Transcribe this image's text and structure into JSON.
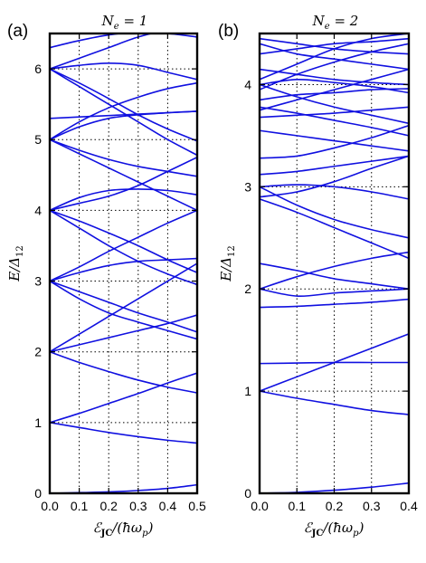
{
  "chart_data": [
    {
      "type": "line",
      "panel_label": "(a)",
      "title": "N_e = 1",
      "xlabel": "𝓔_JC/(ħω_p)",
      "ylabel": "E/Δ_12",
      "xlim": [
        0,
        0.5
      ],
      "ylim": [
        0,
        6.5
      ],
      "xticks": [
        0.0,
        0.1,
        0.2,
        0.3,
        0.4,
        0.5
      ],
      "xtick_labels": [
        "0.0",
        "0.1",
        "0.2",
        "0.3",
        "0.4",
        "0.5"
      ],
      "yticks": [
        0,
        1,
        2,
        3,
        4,
        5,
        6
      ],
      "ytick_labels": [
        "0",
        "1",
        "2",
        "3",
        "4",
        "5",
        "6"
      ],
      "grid": "dotted",
      "color": "#1010e0",
      "series": [
        {
          "x": [
            0,
            0.1,
            0.2,
            0.3,
            0.4,
            0.5
          ],
          "y": [
            0,
            0.01,
            0.02,
            0.04,
            0.07,
            0.12
          ]
        },
        {
          "x": [
            0,
            0.1,
            0.2,
            0.3,
            0.4,
            0.5
          ],
          "y": [
            1,
            0.93,
            0.86,
            0.8,
            0.75,
            0.71
          ]
        },
        {
          "x": [
            0,
            0.1,
            0.2,
            0.3,
            0.4,
            0.5
          ],
          "y": [
            1,
            1.13,
            1.27,
            1.41,
            1.56,
            1.7
          ]
        },
        {
          "x": [
            0,
            0.1,
            0.2,
            0.3,
            0.4,
            0.5
          ],
          "y": [
            2,
            1.85,
            1.72,
            1.6,
            1.5,
            1.42
          ]
        },
        {
          "x": [
            0,
            0.1,
            0.2,
            0.3,
            0.4,
            0.5
          ],
          "y": [
            2,
            2.1,
            2.2,
            2.3,
            2.4,
            2.52
          ]
        },
        {
          "x": [
            0,
            0.1,
            0.2,
            0.3,
            0.4,
            0.5
          ],
          "y": [
            2,
            2.25,
            2.5,
            2.75,
            3.0,
            3.25
          ]
        },
        {
          "x": [
            0,
            0.1,
            0.2,
            0.3,
            0.4,
            0.5
          ],
          "y": [
            3,
            2.85,
            2.7,
            2.55,
            2.42,
            2.28
          ]
        },
        {
          "x": [
            0,
            0.1,
            0.2,
            0.3,
            0.4,
            0.5
          ],
          "y": [
            3,
            2.75,
            2.55,
            2.42,
            2.3,
            2.18
          ]
        },
        {
          "x": [
            0,
            0.1,
            0.2,
            0.3,
            0.4,
            0.5
          ],
          "y": [
            3,
            3.12,
            3.22,
            3.28,
            3.3,
            3.32
          ]
        },
        {
          "x": [
            0,
            0.1,
            0.2,
            0.3,
            0.4,
            0.5
          ],
          "y": [
            3,
            3.2,
            3.42,
            3.62,
            3.82,
            4.0
          ]
        },
        {
          "x": [
            0,
            0.1,
            0.2,
            0.3,
            0.4,
            0.5
          ],
          "y": [
            4,
            3.75,
            3.5,
            3.28,
            3.1,
            2.95
          ]
        },
        {
          "x": [
            0,
            0.1,
            0.2,
            0.3,
            0.4,
            0.5
          ],
          "y": [
            4,
            3.85,
            3.68,
            3.5,
            3.3,
            3.12
          ]
        },
        {
          "x": [
            0,
            0.1,
            0.2,
            0.3,
            0.4,
            0.5
          ],
          "y": [
            4,
            4.18,
            4.28,
            4.3,
            4.28,
            4.22
          ]
        },
        {
          "x": [
            0,
            0.1,
            0.2,
            0.3,
            0.4,
            0.5
          ],
          "y": [
            4,
            4.1,
            4.2,
            4.35,
            4.55,
            4.75
          ]
        },
        {
          "x": [
            0,
            0.1,
            0.2,
            0.3,
            0.4,
            0.5
          ],
          "y": [
            5,
            4.8,
            4.6,
            4.4,
            4.2,
            4.0
          ]
        },
        {
          "x": [
            0,
            0.1,
            0.2,
            0.3,
            0.4,
            0.5
          ],
          "y": [
            5,
            4.85,
            4.72,
            4.62,
            4.55,
            4.48
          ]
        },
        {
          "x": [
            0,
            0.1,
            0.2,
            0.3,
            0.4,
            0.5
          ],
          "y": [
            5,
            5.18,
            5.3,
            5.35,
            5.38,
            5.4
          ]
        },
        {
          "x": [
            0,
            0.1,
            0.2,
            0.3,
            0.4,
            0.5
          ],
          "y": [
            5,
            5.25,
            5.45,
            5.6,
            5.72,
            5.8
          ]
        },
        {
          "x": [
            0,
            0.1,
            0.2,
            0.3,
            0.4,
            0.5
          ],
          "y": [
            6,
            5.75,
            5.5,
            5.25,
            5.0,
            4.78
          ]
        },
        {
          "x": [
            0,
            0.1,
            0.2,
            0.3,
            0.4,
            0.5
          ],
          "y": [
            6,
            5.8,
            5.58,
            5.35,
            5.15,
            4.98
          ]
        },
        {
          "x": [
            0,
            0.1,
            0.2,
            0.3,
            0.4,
            0.5
          ],
          "y": [
            6,
            6.15,
            6.3,
            6.45,
            6.55,
            6.6
          ]
        },
        {
          "x": [
            0,
            0.1,
            0.2,
            0.3,
            0.4,
            0.5
          ],
          "y": [
            6,
            6.05,
            6.08,
            6.05,
            5.95,
            5.85
          ]
        },
        {
          "x": [
            0,
            0.1,
            0.2,
            0.3,
            0.4,
            0.5
          ],
          "y": [
            6.3,
            6.4,
            6.48,
            6.52,
            6.5,
            6.45
          ]
        },
        {
          "x": [
            0,
            0.1,
            0.2,
            0.3,
            0.4,
            0.5
          ],
          "y": [
            5.3,
            5.32,
            5.34,
            5.36,
            5.38,
            5.4
          ]
        }
      ]
    },
    {
      "type": "line",
      "panel_label": "(b)",
      "title": "N_e = 2",
      "xlabel": "𝓔_JC/(ħω_p)",
      "ylabel": "E/Δ_12",
      "xlim": [
        0,
        0.4
      ],
      "ylim": [
        0,
        4.5
      ],
      "xticks": [
        0.0,
        0.1,
        0.2,
        0.3,
        0.4
      ],
      "xtick_labels": [
        "0.0",
        "0.1",
        "0.2",
        "0.3",
        "0.4"
      ],
      "yticks": [
        0,
        1,
        2,
        3,
        4
      ],
      "ytick_labels": [
        "0",
        "1",
        "2",
        "3",
        "4"
      ],
      "grid": "dotted",
      "color": "#1010e0",
      "series": [
        {
          "x": [
            0,
            0.1,
            0.2,
            0.3,
            0.4
          ],
          "y": [
            0,
            0.01,
            0.03,
            0.06,
            0.1
          ]
        },
        {
          "x": [
            0,
            0.1,
            0.2,
            0.3,
            0.4
          ],
          "y": [
            1,
            0.93,
            0.87,
            0.81,
            0.77
          ]
        },
        {
          "x": [
            0,
            0.1,
            0.2,
            0.3,
            0.4
          ],
          "y": [
            1,
            1.14,
            1.28,
            1.42,
            1.56
          ]
        },
        {
          "x": [
            0,
            0.1,
            0.2,
            0.3,
            0.4
          ],
          "y": [
            1.27,
            1.275,
            1.28,
            1.28,
            1.28
          ]
        },
        {
          "x": [
            0,
            0.1,
            0.2,
            0.3,
            0.4
          ],
          "y": [
            1.82,
            1.83,
            1.85,
            1.87,
            1.9
          ]
        },
        {
          "x": [
            0,
            0.1,
            0.2,
            0.3,
            0.4
          ],
          "y": [
            2,
            1.93,
            1.96,
            1.98,
            2.0
          ]
        },
        {
          "x": [
            0,
            0.1,
            0.2,
            0.3,
            0.4
          ],
          "y": [
            2,
            2.12,
            2.22,
            2.3,
            2.36
          ]
        },
        {
          "x": [
            0,
            0.1,
            0.2,
            0.3,
            0.4
          ],
          "y": [
            2.25,
            2.18,
            2.1,
            2.05,
            2.0
          ]
        },
        {
          "x": [
            0,
            0.1,
            0.2,
            0.3,
            0.4
          ],
          "y": [
            2.88,
            2.75,
            2.6,
            2.45,
            2.3
          ]
        },
        {
          "x": [
            0,
            0.1,
            0.2,
            0.3,
            0.4
          ],
          "y": [
            3,
            2.82,
            2.68,
            2.58,
            2.5
          ]
        },
        {
          "x": [
            0,
            0.1,
            0.2,
            0.3,
            0.4
          ],
          "y": [
            3,
            3.02,
            3.0,
            2.95,
            2.88
          ]
        },
        {
          "x": [
            0,
            0.1,
            0.2,
            0.3,
            0.4
          ],
          "y": [
            2.9,
            2.95,
            3.05,
            3.18,
            3.3
          ]
        },
        {
          "x": [
            0,
            0.1,
            0.2,
            0.3,
            0.4
          ],
          "y": [
            3.12,
            3.15,
            3.2,
            3.25,
            3.3
          ]
        },
        {
          "x": [
            0,
            0.1,
            0.2,
            0.3,
            0.4
          ],
          "y": [
            3.28,
            3.3,
            3.38,
            3.48,
            3.6
          ]
        },
        {
          "x": [
            0,
            0.1,
            0.2,
            0.3,
            0.4
          ],
          "y": [
            3.55,
            3.5,
            3.45,
            3.4,
            3.35
          ]
        },
        {
          "x": [
            0,
            0.1,
            0.2,
            0.3,
            0.4
          ],
          "y": [
            3.68,
            3.7,
            3.72,
            3.75,
            3.78
          ]
        },
        {
          "x": [
            0,
            0.1,
            0.2,
            0.3,
            0.4
          ],
          "y": [
            3.75,
            3.85,
            3.95,
            4.05,
            4.15
          ]
        },
        {
          "x": [
            0,
            0.1,
            0.2,
            0.3,
            0.4
          ],
          "y": [
            3.78,
            3.72,
            3.65,
            3.58,
            3.5
          ]
        },
        {
          "x": [
            0,
            0.1,
            0.2,
            0.3,
            0.4
          ],
          "y": [
            3.85,
            3.9,
            3.92,
            3.95,
            3.96
          ]
        },
        {
          "x": [
            0,
            0.1,
            0.2,
            0.3,
            0.4
          ],
          "y": [
            3.95,
            4.1,
            4.22,
            4.32,
            4.4
          ]
        },
        {
          "x": [
            0,
            0.1,
            0.2,
            0.3,
            0.4
          ],
          "y": [
            4,
            3.88,
            3.78,
            3.7,
            3.62
          ]
        },
        {
          "x": [
            0,
            0.1,
            0.2,
            0.3,
            0.4
          ],
          "y": [
            4,
            4.05,
            4.02,
            3.98,
            3.92
          ]
        },
        {
          "x": [
            0,
            0.1,
            0.2,
            0.3,
            0.4
          ],
          "y": [
            4.05,
            4.2,
            4.35,
            4.45,
            4.5
          ]
        },
        {
          "x": [
            0,
            0.1,
            0.2,
            0.3,
            0.4
          ],
          "y": [
            4.15,
            4.1,
            4.05,
            4.02,
            4.0
          ]
        },
        {
          "x": [
            0,
            0.1,
            0.2,
            0.3,
            0.4
          ],
          "y": [
            4.3,
            4.35,
            4.4,
            4.42,
            4.45
          ]
        },
        {
          "x": [
            0,
            0.1,
            0.2,
            0.3,
            0.4
          ],
          "y": [
            4.4,
            4.3,
            4.25,
            4.2,
            4.15
          ]
        },
        {
          "x": [
            0,
            0.1,
            0.2,
            0.3,
            0.4
          ],
          "y": [
            4.45,
            4.4,
            4.35,
            4.32,
            4.3
          ]
        }
      ]
    }
  ]
}
